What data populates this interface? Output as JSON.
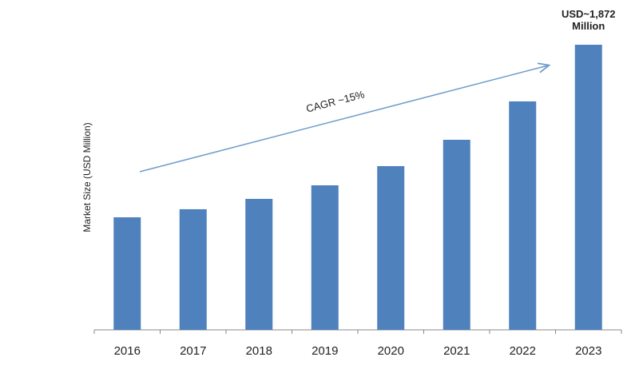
{
  "chart_data": {
    "type": "bar",
    "y_label": "Market Size (USD Million)",
    "annotation": "CAGR ~15%",
    "categories": [
      "2016",
      "2017",
      "2018",
      "2019",
      "2020",
      "2021",
      "2022",
      "2023"
    ],
    "values": [
      739,
      792,
      860,
      949,
      1075,
      1248,
      1500,
      1872
    ],
    "value_labels": [
      null,
      null,
      null,
      null,
      null,
      null,
      null,
      "USD~1,872 Million"
    ],
    "color": "#4f81bd"
  }
}
